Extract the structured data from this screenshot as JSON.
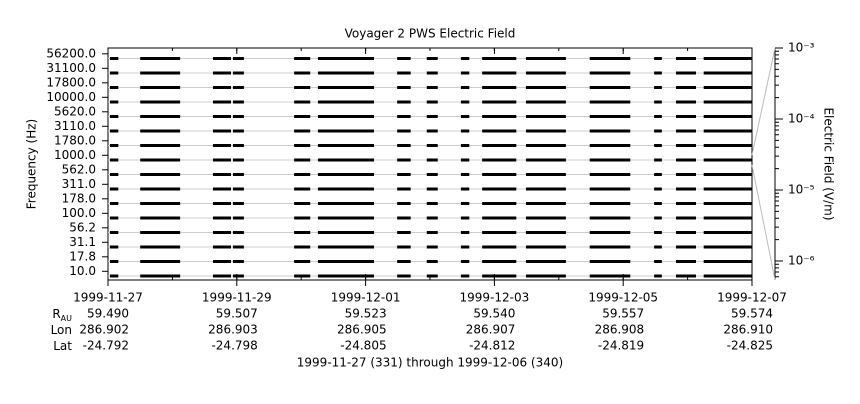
{
  "chart_data": {
    "type": "coverage",
    "title": "Voyager 2 PWS Electric Field",
    "y_label": "Frequency (Hz)",
    "y2_label": "Electric Field (V/m)",
    "footer": "1999-11-27 (331) through 1999-12-06 (340)",
    "channels": [
      "56200.0",
      "31100.0",
      "17800.0",
      "10000.0",
      "5620.0",
      "3110.0",
      "1780.0",
      "1000.0",
      "562.0",
      "311.0",
      "178.0",
      "100.0",
      "56.2",
      "31.1",
      "17.8",
      "10.0"
    ],
    "color": "#000000",
    "xlim": [
      331,
      341
    ],
    "xticks": [
      {
        "value": 331,
        "label": "1999-11-27"
      },
      {
        "value": 333,
        "label": "1999-11-29"
      },
      {
        "value": 335,
        "label": "1999-12-01"
      },
      {
        "value": 337,
        "label": "1999-12-03"
      },
      {
        "value": 339,
        "label": "1999-12-05"
      },
      {
        "value": 341,
        "label": "1999-12-07"
      }
    ],
    "coverage": [
      [
        331.03,
        331.16
      ],
      [
        331.5,
        332.12
      ],
      [
        332.63,
        332.91
      ],
      [
        332.94,
        333.11
      ],
      [
        333.89,
        334.14
      ],
      [
        334.26,
        335.13
      ],
      [
        335.49,
        335.7
      ],
      [
        335.95,
        336.12
      ],
      [
        336.48,
        336.61
      ],
      [
        336.81,
        337.34
      ],
      [
        337.49,
        338.11
      ],
      [
        338.48,
        339.11
      ],
      [
        339.48,
        339.6
      ],
      [
        339.82,
        340.13
      ],
      [
        340.25,
        341.0
      ]
    ],
    "y2lim": [
      5.4e-07,
      0.001
    ],
    "y2_log": true,
    "y2ticks": [
      {
        "value": 0.001,
        "label": "10⁻³"
      },
      {
        "value": 0.0001,
        "label": "10⁻⁴"
      },
      {
        "value": 1e-05,
        "label": "10⁻⁵"
      },
      {
        "value": 1e-06,
        "label": "10⁻⁶"
      }
    ],
    "ephemeris": [
      {
        "label": "R",
        "label_sub": "AU",
        "values": [
          "59.490",
          "59.507",
          "59.523",
          "59.540",
          "59.557",
          "59.574"
        ]
      },
      {
        "label": "Lon",
        "values": [
          "286.902",
          "286.903",
          "286.905",
          "286.907",
          "286.908",
          "286.910"
        ]
      },
      {
        "label": "Lat",
        "values": [
          "-24.792",
          "-24.798",
          "-24.805",
          "-24.812",
          "-24.819",
          "-24.825"
        ]
      }
    ]
  }
}
